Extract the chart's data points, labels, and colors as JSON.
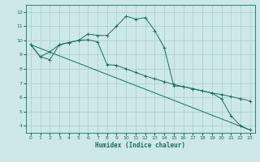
{
  "xlabel": "Humidex (Indice chaleur)",
  "background_color": "#cce8e8",
  "grid_color": "#aacccc",
  "line_color": "#1e6b5e",
  "xlim": [
    -0.5,
    23.5
  ],
  "ylim": [
    3.5,
    12.5
  ],
  "yticks": [
    4,
    5,
    6,
    7,
    8,
    9,
    10,
    11,
    12
  ],
  "xticks": [
    0,
    1,
    2,
    3,
    4,
    5,
    6,
    7,
    8,
    9,
    10,
    11,
    12,
    13,
    14,
    15,
    16,
    17,
    18,
    19,
    20,
    21,
    22,
    23
  ],
  "series": [
    {
      "x": [
        0,
        1,
        2,
        3,
        4,
        5,
        6,
        7,
        8,
        9,
        10,
        11,
        12,
        13,
        14,
        15,
        16,
        17,
        18,
        19,
        20,
        21,
        22,
        23
      ],
      "y": [
        9.7,
        8.85,
        8.65,
        9.7,
        9.85,
        10.0,
        10.05,
        9.9,
        8.3,
        8.25,
        8.0,
        7.75,
        7.5,
        7.3,
        7.1,
        6.9,
        6.75,
        6.6,
        6.45,
        6.3,
        6.2,
        6.05,
        5.9,
        5.75
      ],
      "marker": true
    },
    {
      "x": [
        0,
        1,
        2,
        3,
        4,
        5,
        6,
        7,
        8,
        9,
        10,
        11,
        12,
        13,
        14,
        15,
        16,
        17,
        18,
        19,
        20,
        21,
        22,
        23
      ],
      "y": [
        9.7,
        8.85,
        9.2,
        9.7,
        9.85,
        10.0,
        10.45,
        10.35,
        10.35,
        11.0,
        11.7,
        11.5,
        11.6,
        10.7,
        9.5,
        6.8,
        6.75,
        6.6,
        6.45,
        6.3,
        5.9,
        4.7,
        4.0,
        3.7
      ],
      "marker": true
    },
    {
      "x": [
        0,
        23
      ],
      "y": [
        9.7,
        3.7
      ],
      "marker": false
    }
  ]
}
